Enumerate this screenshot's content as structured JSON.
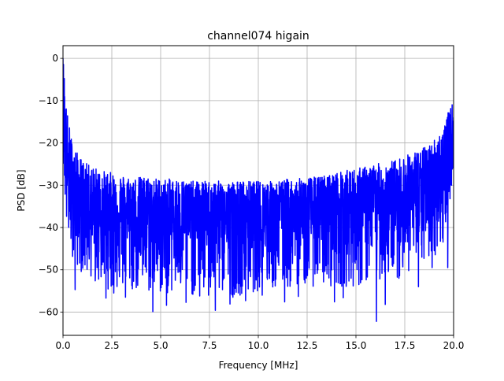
{
  "chart_data": {
    "type": "line",
    "title": "channel074 higain",
    "xlabel": "Frequency [MHz]",
    "ylabel": "PSD [dB]",
    "xlim": [
      0,
      20
    ],
    "ylim": [
      -65.5,
      3
    ],
    "xticks": [
      0,
      2.5,
      5,
      7.5,
      10,
      12.5,
      15,
      17.5,
      20
    ],
    "xtick_labels": [
      "0.0",
      "2.5",
      "5.0",
      "7.5",
      "10.0",
      "12.5",
      "15.0",
      "17.5",
      "20.0"
    ],
    "yticks": [
      0,
      -10,
      -20,
      -30,
      -40,
      -50,
      -60
    ],
    "ytick_labels": [
      "0",
      "−10",
      "−20",
      "−30",
      "−40",
      "−50",
      "−60"
    ],
    "grid": true,
    "series": [
      {
        "color": "#0000ff",
        "x": [
          0.0,
          0.05,
          0.1,
          0.15,
          0.2,
          0.3,
          0.4,
          0.5,
          0.6,
          0.7,
          0.8,
          1.0,
          1.25,
          1.5,
          1.75,
          2.0,
          2.5,
          3.0,
          3.5,
          4.0,
          4.5,
          5.0,
          5.5,
          6.0,
          6.5,
          7.0,
          7.5,
          8.0,
          8.5,
          9.0,
          9.5,
          10.0,
          10.5,
          11.0,
          11.5,
          12.0,
          12.5,
          13.0,
          13.5,
          14.0,
          14.5,
          15.0,
          15.5,
          16.0,
          16.5,
          17.0,
          17.5,
          18.0,
          18.5,
          19.0,
          19.5,
          19.7,
          19.8,
          19.9,
          20.0
        ],
        "upper": [
          0,
          -2,
          -6,
          -10,
          -12,
          -15,
          -18,
          -20,
          -21,
          -22,
          -23,
          -24,
          -25,
          -25.5,
          -26,
          -26.5,
          -27,
          -27.5,
          -28,
          -28,
          -28,
          -28.5,
          -28.5,
          -28.5,
          -29,
          -29,
          -29,
          -29,
          -29,
          -29,
          -29,
          -29,
          -29,
          -29,
          -28.5,
          -28.5,
          -28,
          -28,
          -27.5,
          -27,
          -26.5,
          -26,
          -25.5,
          -25,
          -24.5,
          -24,
          -23,
          -22,
          -21,
          -19,
          -16,
          -13,
          -12,
          -11,
          -10
        ],
        "lower": [
          -24,
          -30,
          -35,
          -40,
          -42,
          -44,
          -46,
          -47,
          -48,
          -49,
          -50,
          -51,
          -52,
          -52,
          -53,
          -54,
          -55,
          -55,
          -55,
          -56,
          -56,
          -56,
          -56,
          -56,
          -56,
          -56,
          -56,
          -56,
          -56,
          -56,
          -56,
          -55,
          -55,
          -55,
          -55,
          -54,
          -54,
          -54,
          -54,
          -54,
          -54,
          -54,
          -54,
          -53,
          -52,
          -52,
          -51,
          -50,
          -49,
          -47,
          -45,
          -40,
          -36,
          -30,
          -25
        ],
        "median": [
          -2,
          -10,
          -18,
          -24,
          -27,
          -29,
          -31,
          -32,
          -33,
          -34,
          -34.5,
          -35,
          -35.5,
          -36,
          -36.5,
          -37,
          -37,
          -37.5,
          -37.5,
          -37.5,
          -38,
          -38,
          -38,
          -38,
          -38,
          -38,
          -38,
          -38,
          -38,
          -38,
          -38,
          -38,
          -38,
          -37.5,
          -37.5,
          -37.5,
          -37,
          -37,
          -37,
          -36.5,
          -36,
          -36,
          -35.5,
          -35,
          -35,
          -34.5,
          -34,
          -33,
          -32,
          -31,
          -29,
          -27,
          -25,
          -23,
          -21
        ],
        "deep_nulls": [
          [
            0.62,
            -54.7
          ],
          [
            1.65,
            -52.6
          ],
          [
            2.2,
            -56.7
          ],
          [
            2.6,
            -55.5
          ],
          [
            3.2,
            -56.5
          ],
          [
            3.55,
            -54.5
          ],
          [
            4.6,
            -59.9
          ],
          [
            5.3,
            -58.4
          ],
          [
            6.3,
            -57.7
          ],
          [
            6.65,
            -55.8
          ],
          [
            7.0,
            -56.2
          ],
          [
            7.45,
            -56.0
          ],
          [
            7.8,
            -59.6
          ],
          [
            8.55,
            -58.1
          ],
          [
            8.7,
            -56.5
          ],
          [
            9.15,
            -55.6
          ],
          [
            9.35,
            -57.3
          ],
          [
            10.2,
            -56.0
          ],
          [
            11.35,
            -57.6
          ],
          [
            12.05,
            -56.3
          ],
          [
            13.9,
            -57.6
          ],
          [
            14.35,
            -56.6
          ],
          [
            14.75,
            -52.0
          ],
          [
            15.15,
            -53.5
          ],
          [
            16.05,
            -62.2
          ],
          [
            16.5,
            -58.2
          ],
          [
            17.2,
            -52.0
          ],
          [
            18.2,
            -54.0
          ],
          [
            18.9,
            -49.5
          ],
          [
            19.7,
            -49.5
          ]
        ]
      }
    ]
  }
}
